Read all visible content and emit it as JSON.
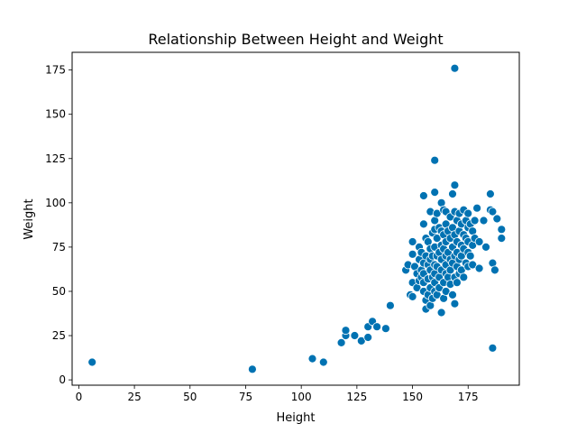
{
  "chart_data": {
    "type": "scatter",
    "title": "Relationship Between Height and Weight",
    "xlabel": "Height",
    "ylabel": "Weight",
    "xlim": [
      -3,
      198
    ],
    "ylim": [
      -3,
      185
    ],
    "xticks": [
      0,
      25,
      50,
      75,
      100,
      125,
      150,
      175
    ],
    "yticks": [
      0,
      25,
      50,
      75,
      100,
      125,
      150,
      175
    ],
    "grid": false,
    "marker_color": "#0072b2",
    "marker_edge": "#ffffff",
    "points": [
      [
        6,
        10
      ],
      [
        78,
        6
      ],
      [
        105,
        12
      ],
      [
        110,
        10
      ],
      [
        118,
        21
      ],
      [
        120,
        25
      ],
      [
        120,
        28
      ],
      [
        124,
        25
      ],
      [
        127,
        22
      ],
      [
        130,
        24
      ],
      [
        130,
        30
      ],
      [
        132,
        33
      ],
      [
        134,
        30
      ],
      [
        138,
        29
      ],
      [
        140,
        42
      ],
      [
        147,
        62
      ],
      [
        148,
        65
      ],
      [
        149,
        48
      ],
      [
        150,
        78
      ],
      [
        150,
        71
      ],
      [
        150,
        55
      ],
      [
        150,
        47
      ],
      [
        151,
        64
      ],
      [
        152,
        60
      ],
      [
        152,
        52
      ],
      [
        153,
        75
      ],
      [
        153,
        68
      ],
      [
        153,
        56
      ],
      [
        154,
        72
      ],
      [
        154,
        62
      ],
      [
        154,
        58
      ],
      [
        155,
        104
      ],
      [
        155,
        88
      ],
      [
        155,
        66
      ],
      [
        155,
        60
      ],
      [
        155,
        55
      ],
      [
        155,
        50
      ],
      [
        156,
        80
      ],
      [
        156,
        70
      ],
      [
        156,
        45
      ],
      [
        156,
        40
      ],
      [
        157,
        78
      ],
      [
        157,
        65
      ],
      [
        157,
        57
      ],
      [
        157,
        48
      ],
      [
        158,
        95
      ],
      [
        158,
        74
      ],
      [
        158,
        68
      ],
      [
        158,
        62
      ],
      [
        158,
        52
      ],
      [
        158,
        42
      ],
      [
        159,
        83
      ],
      [
        159,
        70
      ],
      [
        159,
        58
      ],
      [
        159,
        46
      ],
      [
        160,
        124
      ],
      [
        160,
        106
      ],
      [
        160,
        90
      ],
      [
        160,
        85
      ],
      [
        160,
        75
      ],
      [
        160,
        65
      ],
      [
        160,
        60
      ],
      [
        160,
        55
      ],
      [
        160,
        50
      ],
      [
        161,
        94
      ],
      [
        161,
        80
      ],
      [
        161,
        70
      ],
      [
        161,
        64
      ],
      [
        161,
        48
      ],
      [
        162,
        86
      ],
      [
        162,
        72
      ],
      [
        162,
        58
      ],
      [
        162,
        52
      ],
      [
        163,
        100
      ],
      [
        163,
        84
      ],
      [
        163,
        76
      ],
      [
        163,
        68
      ],
      [
        163,
        62
      ],
      [
        163,
        38
      ],
      [
        164,
        96
      ],
      [
        164,
        82
      ],
      [
        164,
        74
      ],
      [
        164,
        55
      ],
      [
        164,
        46
      ],
      [
        165,
        95
      ],
      [
        165,
        88
      ],
      [
        165,
        78
      ],
      [
        165,
        70
      ],
      [
        165,
        65
      ],
      [
        165,
        60
      ],
      [
        165,
        50
      ],
      [
        166,
        84
      ],
      [
        166,
        72
      ],
      [
        166,
        58
      ],
      [
        167,
        92
      ],
      [
        167,
        80
      ],
      [
        167,
        68
      ],
      [
        167,
        62
      ],
      [
        167,
        54
      ],
      [
        168,
        105
      ],
      [
        168,
        86
      ],
      [
        168,
        75
      ],
      [
        168,
        66
      ],
      [
        168,
        48
      ],
      [
        169,
        176
      ],
      [
        169,
        110
      ],
      [
        169,
        95
      ],
      [
        169,
        82
      ],
      [
        169,
        70
      ],
      [
        169,
        58
      ],
      [
        169,
        43
      ],
      [
        170,
        90
      ],
      [
        170,
        78
      ],
      [
        170,
        72
      ],
      [
        170,
        64
      ],
      [
        170,
        55
      ],
      [
        171,
        94
      ],
      [
        171,
        84
      ],
      [
        171,
        68
      ],
      [
        171,
        60
      ],
      [
        172,
        88
      ],
      [
        172,
        76
      ],
      [
        172,
        70
      ],
      [
        172,
        62
      ],
      [
        173,
        96
      ],
      [
        173,
        82
      ],
      [
        173,
        74
      ],
      [
        173,
        58
      ],
      [
        174,
        90
      ],
      [
        174,
        80
      ],
      [
        174,
        66
      ],
      [
        175,
        94
      ],
      [
        175,
        86
      ],
      [
        175,
        78
      ],
      [
        175,
        72
      ],
      [
        175,
        64
      ],
      [
        176,
        88
      ],
      [
        176,
        70
      ],
      [
        177,
        84
      ],
      [
        177,
        76
      ],
      [
        177,
        65
      ],
      [
        178,
        90
      ],
      [
        178,
        80
      ],
      [
        179,
        97
      ],
      [
        180,
        78
      ],
      [
        180,
        63
      ],
      [
        182,
        90
      ],
      [
        183,
        75
      ],
      [
        185,
        105
      ],
      [
        185,
        96
      ],
      [
        186,
        95
      ],
      [
        186,
        66
      ],
      [
        186,
        18
      ],
      [
        187,
        62
      ],
      [
        188,
        91
      ],
      [
        190,
        85
      ],
      [
        190,
        80
      ]
    ]
  }
}
